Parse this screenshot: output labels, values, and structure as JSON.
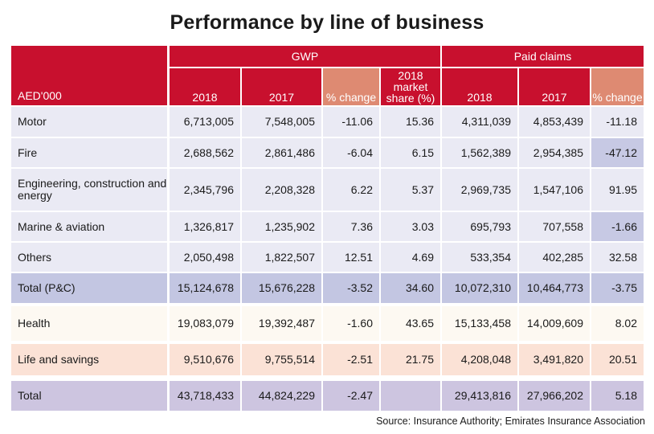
{
  "title": "Performance by line of business",
  "source": "Source:  Insurance Authority; Emirates Insurance Association",
  "colors": {
    "header_red": "#c8102e",
    "header_salmon": "#de8a72",
    "row_lilac": "#eaeaf4",
    "row_total_pc": "#c3c6e2",
    "row_health": "#fdf9f2",
    "row_life": "#fbe2d6",
    "row_total": "#cdc5e0",
    "highlight_cell": "#c7c9e4"
  },
  "header": {
    "unit": "AED'000",
    "groups": [
      "GWP",
      "Paid claims"
    ],
    "columns": [
      "2018",
      "2017",
      "% change",
      "2018 market share (%)",
      "2018",
      "2017",
      "% change"
    ]
  },
  "rows": [
    {
      "label": "Motor",
      "values": [
        "6,713,005",
        "7,548,005",
        "-11.06",
        "15.36",
        "4,311,039",
        "4,853,439",
        "-11.18"
      ]
    },
    {
      "label": "Fire",
      "values": [
        "2,688,562",
        "2,861,486",
        "-6.04",
        "6.15",
        "1,562,389",
        "2,954,385",
        "-47.12"
      ]
    },
    {
      "label": "Engineering, construction and energy",
      "values": [
        "2,345,796",
        "2,208,328",
        "6.22",
        "5.37",
        "2,969,735",
        "1,547,106",
        "91.95"
      ]
    },
    {
      "label": "Marine & aviation",
      "values": [
        "1,326,817",
        "1,235,902",
        "7.36",
        "3.03",
        "695,793",
        "707,558",
        "-1.66"
      ]
    },
    {
      "label": "Others",
      "values": [
        "2,050,498",
        "1,822,507",
        "12.51",
        "4.69",
        "533,354",
        "402,285",
        "32.58"
      ]
    },
    {
      "label": "Total (P&C)",
      "values": [
        "15,124,678",
        "15,676,228",
        "-3.52",
        "34.60",
        "10,072,310",
        "10,464,773",
        "-3.75"
      ]
    },
    {
      "label": "Health",
      "values": [
        "19,083,079",
        "19,392,487",
        "-1.60",
        "43.65",
        "15,133,458",
        "14,009,609",
        "8.02"
      ]
    },
    {
      "label": "Life and savings",
      "values": [
        "9,510,676",
        "9,755,514",
        "-2.51",
        "21.75",
        "4,208,048",
        "3,491,820",
        "20.51"
      ]
    },
    {
      "label": "Total",
      "values": [
        "43,718,433",
        "44,824,229",
        "-2.47",
        "",
        "29,413,816",
        "27,966,202",
        "5.18"
      ]
    }
  ]
}
